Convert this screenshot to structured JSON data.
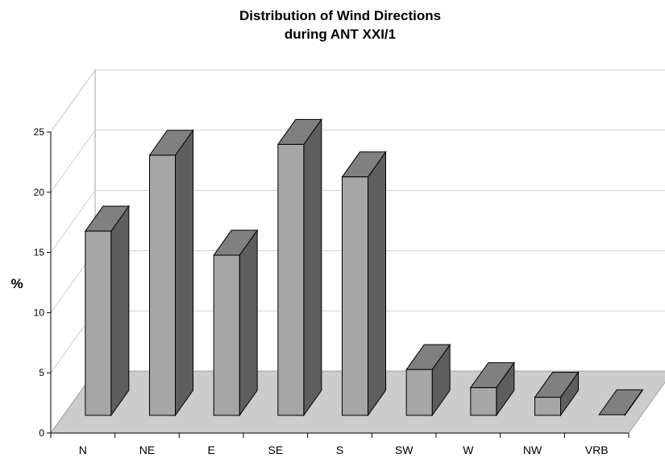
{
  "chart_data": {
    "type": "bar",
    "title_lines": [
      "Distribution of Wind Directions",
      "during ANT XXI/1"
    ],
    "xlabel": "",
    "ylabel": "%",
    "ylim": [
      0,
      25
    ],
    "yticks": [
      "0",
      "5",
      "10",
      "15",
      "20",
      "25"
    ],
    "categories": [
      "N",
      "NE",
      "E",
      "SE",
      "S",
      "SW",
      "W",
      "NW",
      "VRB"
    ],
    "values": [
      15.3,
      21.6,
      13.3,
      22.5,
      19.8,
      3.8,
      2.3,
      1.5,
      0.05
    ],
    "grid": true,
    "three_d": true,
    "colors": {
      "bar_front": "#a6a6a6",
      "bar_top": "#808080",
      "bar_side": "#5e5e5e",
      "floor": "#cccccc",
      "gridline": "#d0d0d0",
      "wall": "#ffffff"
    }
  }
}
